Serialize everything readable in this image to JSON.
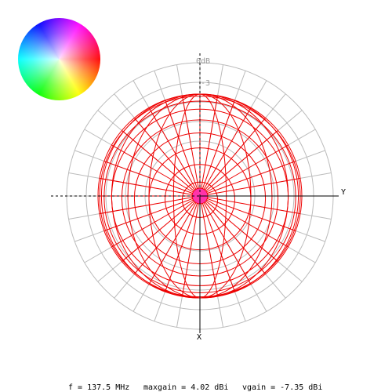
{
  "plot_labels": {
    "zero_db": "0dB",
    "minus_three": "-3",
    "y_axis": "Y",
    "x_axis": "X"
  },
  "footer": {
    "frequency": "f = 137.5 MHz",
    "maxgain": "maxgain = 4.02 dBi",
    "vgain": "vgain = -7.35 dBi"
  }
}
